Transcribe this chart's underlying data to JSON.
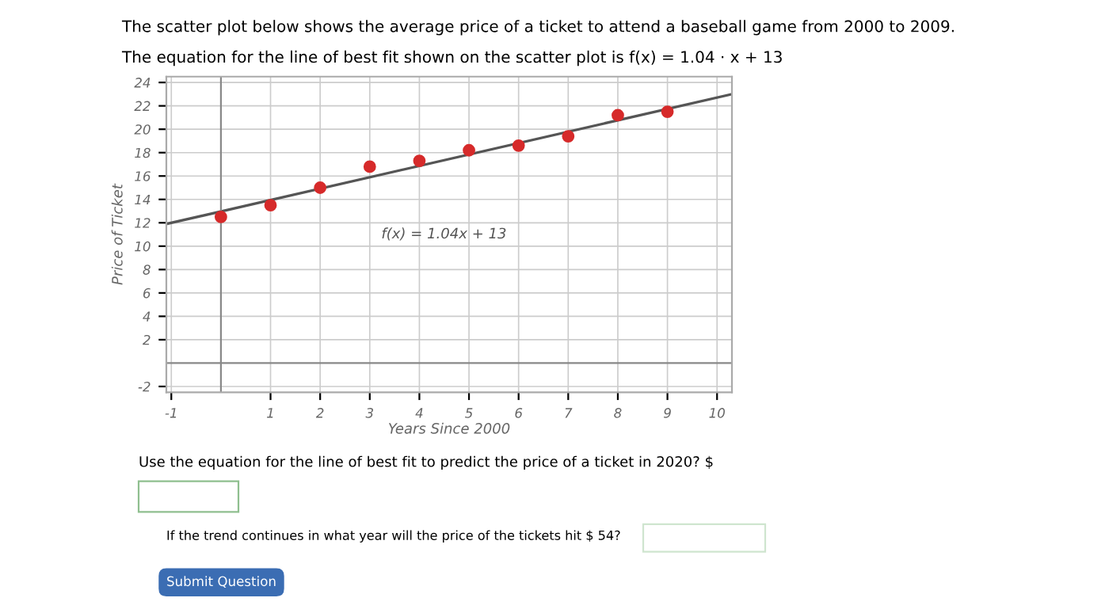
{
  "chart_data": {
    "type": "scatter",
    "title": "The scatter plot below shows the average price of a ticket to attend a baseball game from 2000 to 2009.",
    "subtitle": "The equation for the line of best fit shown on the scatter plot is f(x) = 1.04 · x + 13",
    "xlabel": "Years Since 2000",
    "ylabel": "Price of Ticket",
    "series": [
      {
        "marker": "circle",
        "color": "#d62a2a",
        "x": [
          0,
          1,
          2,
          3,
          4,
          5,
          6,
          7,
          8,
          9
        ],
        "values": [
          12.5,
          13.5,
          15.0,
          16.8,
          17.3,
          18.2,
          18.6,
          19.4,
          21.2,
          21.5
        ]
      },
      {
        "type": "line",
        "color": "#555555",
        "x": [
          -1.1,
          10.3
        ],
        "values": [
          11.9,
          23.0
        ]
      }
    ],
    "xlim": [
      -1.1,
      10.3
    ],
    "ylim": [
      -2.5,
      24.5
    ],
    "xticks": [
      -1,
      1,
      2,
      3,
      4,
      5,
      6,
      7,
      8,
      9,
      10
    ],
    "yticks": [
      -2,
      2,
      4,
      6,
      8,
      10,
      12,
      14,
      16,
      18,
      20,
      22,
      24
    ],
    "grid": true,
    "annotations": [
      "f(x) = 1.04x + 13",
      "Use the equation for the line of best fit to predict the price of a ticket in 2020? $",
      "If the trend continues in what year will the price of the tickets hit $ 54?",
      "Submit Question"
    ]
  }
}
